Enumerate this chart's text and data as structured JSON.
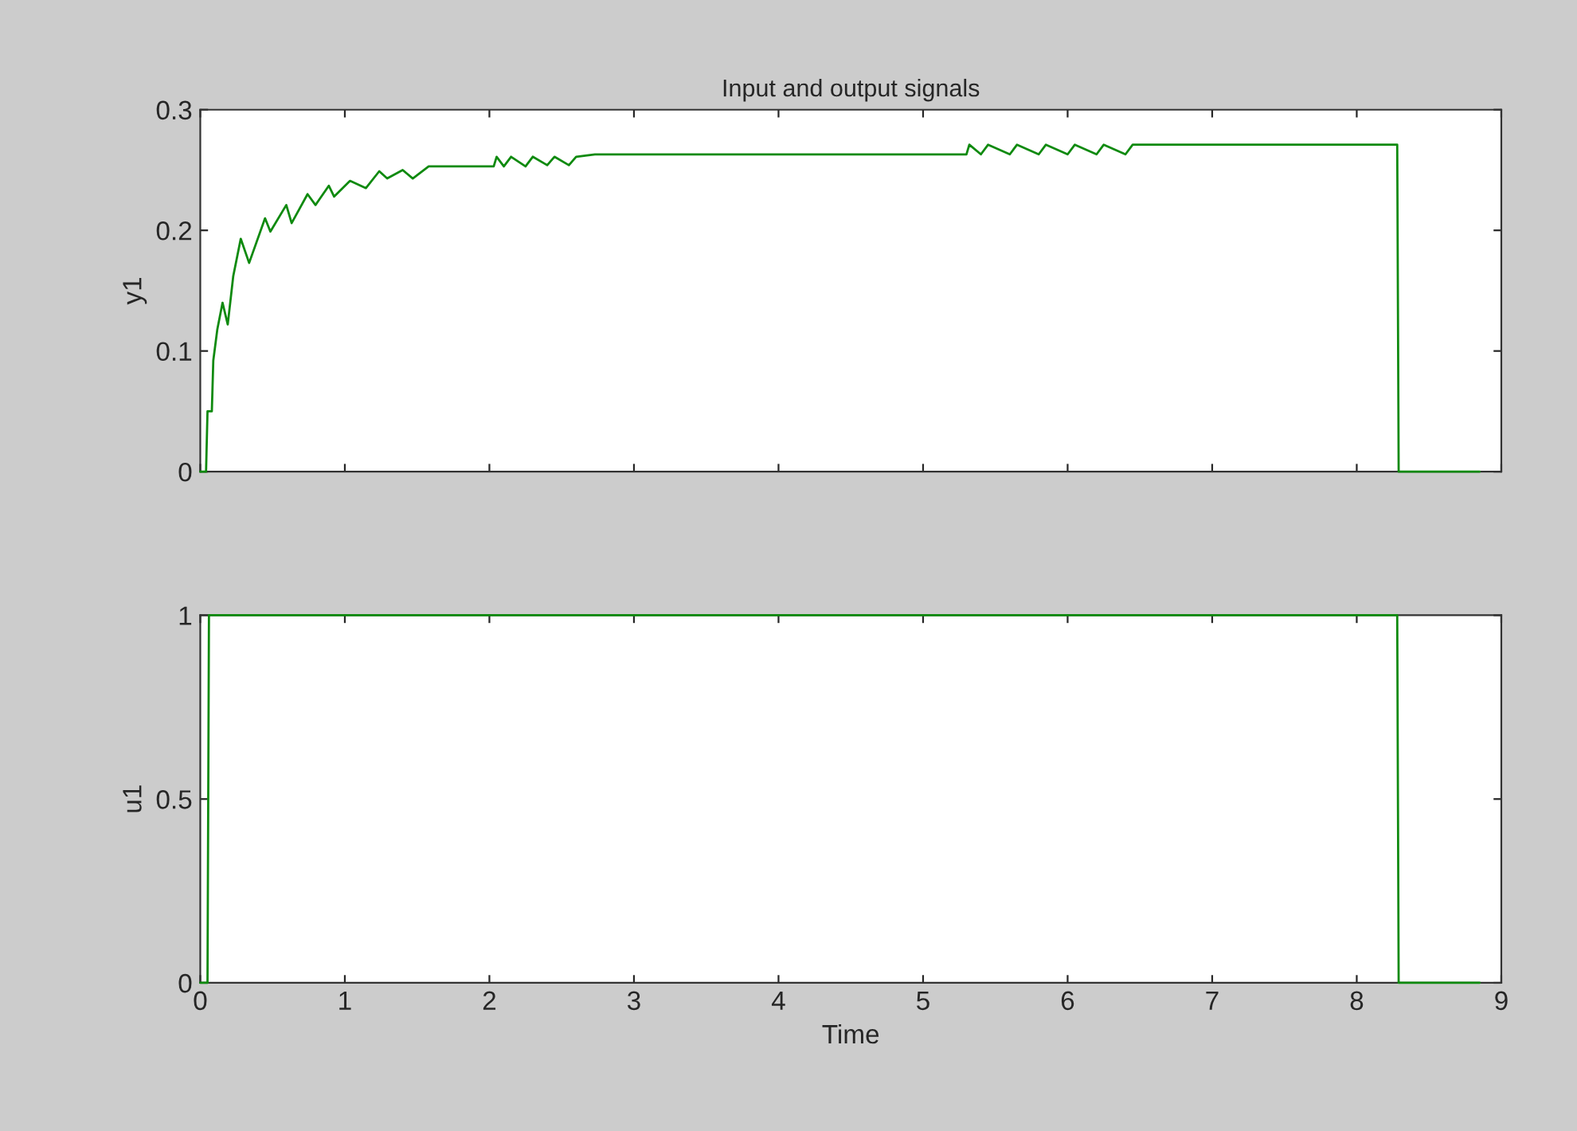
{
  "chart_data": [
    {
      "type": "line",
      "title": "Input and output signals",
      "ylabel": "y1",
      "xlim": [
        0,
        9
      ],
      "xticks": [
        0,
        1,
        2,
        3,
        4,
        5,
        6,
        7,
        8,
        9
      ],
      "ylim": [
        0,
        0.3
      ],
      "yticks": [
        0,
        0.1,
        0.2,
        0.3
      ],
      "tick_labels": "y",
      "grid": false,
      "legend": false,
      "series": [
        {
          "color": "#0f8a0f",
          "x": [
            0,
            0.04,
            0.05,
            0.08,
            0.09,
            0.118,
            0.154,
            0.19,
            0.228,
            0.28,
            0.338,
            0.448,
            0.485,
            0.595,
            0.632,
            0.742,
            0.797,
            0.889,
            0.926,
            1.036,
            1.146,
            1.238,
            1.293,
            1.4,
            1.47,
            1.58,
            2.03,
            2.05,
            2.1,
            2.15,
            2.25,
            2.3,
            2.4,
            2.45,
            2.55,
            2.6,
            2.73,
            5.3,
            5.32,
            5.4,
            5.45,
            5.6,
            5.65,
            5.8,
            5.85,
            6.0,
            6.05,
            6.2,
            6.25,
            6.4,
            6.45,
            6.65,
            8.28,
            8.29,
            8.85
          ],
          "values": [
            0,
            0,
            0.05,
            0.05,
            0.092,
            0.118,
            0.14,
            0.122,
            0.162,
            0.193,
            0.173,
            0.21,
            0.199,
            0.221,
            0.206,
            0.23,
            0.221,
            0.237,
            0.228,
            0.241,
            0.235,
            0.249,
            0.243,
            0.25,
            0.243,
            0.253,
            0.253,
            0.261,
            0.253,
            0.261,
            0.253,
            0.261,
            0.254,
            0.261,
            0.254,
            0.261,
            0.263,
            0.263,
            0.271,
            0.263,
            0.271,
            0.263,
            0.271,
            0.263,
            0.271,
            0.263,
            0.271,
            0.263,
            0.271,
            0.263,
            0.271,
            0.271,
            0.271,
            0,
            0
          ]
        }
      ]
    },
    {
      "type": "line",
      "xlabel": "Time",
      "ylabel": "u1",
      "xlim": [
        0,
        9
      ],
      "xticks": [
        0,
        1,
        2,
        3,
        4,
        5,
        6,
        7,
        8,
        9
      ],
      "ylim": [
        0,
        1
      ],
      "yticks": [
        0,
        0.5,
        1
      ],
      "grid": false,
      "legend": false,
      "series": [
        {
          "color": "#0f8a0f",
          "x": [
            0,
            0.05,
            0.06,
            8.28,
            8.29,
            8.85
          ],
          "values": [
            0,
            0,
            1,
            1,
            0,
            0
          ]
        }
      ]
    }
  ]
}
